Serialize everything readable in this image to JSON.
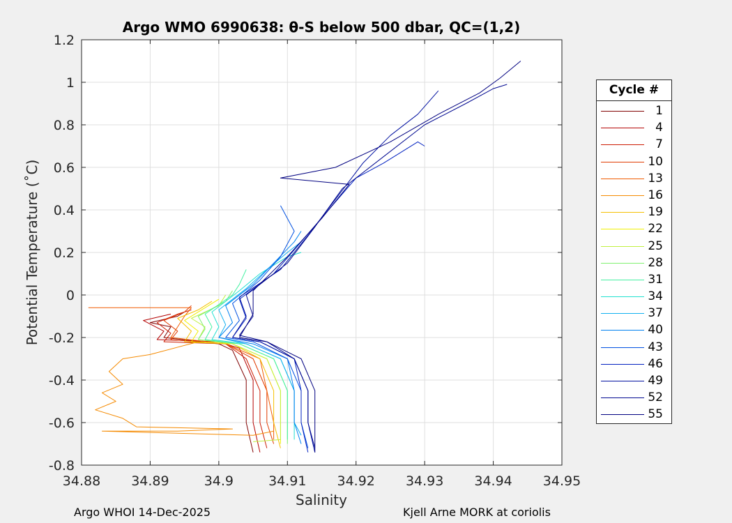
{
  "chart_data": {
    "type": "line",
    "title": "Argo WMO 6990638: θ-S below 500 dbar,  QC=(1,2)",
    "xlabel": "Salinity",
    "ylabel": "Potential Temperature (˚C)",
    "xlim": [
      34.88,
      34.95
    ],
    "ylim": [
      -0.8,
      1.2
    ],
    "xticks": [
      "34.88",
      "34.89",
      "34.9",
      "34.91",
      "34.92",
      "34.93",
      "34.94",
      "34.95"
    ],
    "yticks": [
      "-0.8",
      "-0.6",
      "-0.4",
      "-0.2",
      "0",
      "0.2",
      "0.4",
      "0.6",
      "0.8",
      "1",
      "1.2"
    ],
    "grid": true,
    "legend": {
      "title": "Cycle #",
      "placement": "outside-right",
      "entries": [
        {
          "label": "1",
          "color": "#800000"
        },
        {
          "label": "4",
          "color": "#b30000"
        },
        {
          "label": "7",
          "color": "#cc1a00"
        },
        {
          "label": "10",
          "color": "#e03a00"
        },
        {
          "label": "13",
          "color": "#f05a00"
        },
        {
          "label": "16",
          "color": "#f58a00"
        },
        {
          "label": "19",
          "color": "#f5c000"
        },
        {
          "label": "22",
          "color": "#f0f000"
        },
        {
          "label": "25",
          "color": "#c0f040"
        },
        {
          "label": "28",
          "color": "#80f070"
        },
        {
          "label": "31",
          "color": "#40f0a0"
        },
        {
          "label": "34",
          "color": "#20e0d0"
        },
        {
          "label": "37",
          "color": "#10b0f0"
        },
        {
          "label": "40",
          "color": "#0080f0"
        },
        {
          "label": "43",
          "color": "#0050e0"
        },
        {
          "label": "46",
          "color": "#0020c0"
        },
        {
          "label": "49",
          "color": "#0010a0"
        },
        {
          "label": "52",
          "color": "#000890"
        },
        {
          "label": "55",
          "color": "#000080"
        }
      ]
    },
    "series": [
      {
        "color": "#800000",
        "points": [
          [
            34.905,
            -0.74
          ],
          [
            34.904,
            -0.6
          ],
          [
            34.904,
            -0.4
          ],
          [
            34.902,
            -0.26
          ],
          [
            34.9,
            -0.23
          ],
          [
            34.892,
            -0.2
          ],
          [
            34.893,
            -0.15
          ],
          [
            34.89,
            -0.13
          ],
          [
            34.894,
            -0.1
          ],
          [
            34.895,
            -0.08
          ]
        ]
      },
      {
        "color": "#b30000",
        "points": [
          [
            34.906,
            -0.74
          ],
          [
            34.905,
            -0.6
          ],
          [
            34.905,
            -0.4
          ],
          [
            34.903,
            -0.25
          ],
          [
            34.9,
            -0.22
          ],
          [
            34.891,
            -0.21
          ],
          [
            34.892,
            -0.17
          ],
          [
            34.889,
            -0.12
          ],
          [
            34.893,
            -0.09
          ]
        ]
      },
      {
        "color": "#cc1a00",
        "points": [
          [
            34.907,
            -0.72
          ],
          [
            34.906,
            -0.6
          ],
          [
            34.906,
            -0.45
          ],
          [
            34.904,
            -0.3
          ],
          [
            34.901,
            -0.23
          ],
          [
            34.892,
            -0.22
          ],
          [
            34.893,
            -0.18
          ],
          [
            34.891,
            -0.13
          ],
          [
            34.894,
            -0.09
          ],
          [
            34.896,
            -0.07
          ]
        ]
      },
      {
        "color": "#e03a00",
        "points": [
          [
            34.908,
            -0.7
          ],
          [
            34.907,
            -0.6
          ],
          [
            34.907,
            -0.45
          ],
          [
            34.905,
            -0.3
          ],
          [
            34.901,
            -0.23
          ],
          [
            34.893,
            -0.21
          ],
          [
            34.894,
            -0.17
          ],
          [
            34.892,
            -0.12
          ],
          [
            34.895,
            -0.08
          ],
          [
            34.896,
            -0.05
          ]
        ]
      },
      {
        "color": "#f05a00",
        "points": [
          [
            34.881,
            -0.06
          ],
          [
            34.896,
            -0.06
          ],
          [
            34.895,
            -0.1
          ],
          [
            34.893,
            -0.2
          ],
          [
            34.901,
            -0.23
          ],
          [
            34.906,
            -0.3
          ],
          [
            34.907,
            -0.45
          ],
          [
            34.908,
            -0.6
          ],
          [
            34.908,
            -0.68
          ]
        ]
      },
      {
        "color": "#f58a00",
        "points": [
          [
            34.897,
            -0.22
          ],
          [
            34.89,
            -0.28
          ],
          [
            34.886,
            -0.3
          ],
          [
            34.884,
            -0.36
          ],
          [
            34.886,
            -0.42
          ],
          [
            34.883,
            -0.46
          ],
          [
            34.885,
            -0.5
          ],
          [
            34.882,
            -0.54
          ],
          [
            34.886,
            -0.58
          ],
          [
            34.888,
            -0.62
          ],
          [
            34.902,
            -0.63
          ],
          [
            34.894,
            -0.64
          ],
          [
            34.883,
            -0.64
          ],
          [
            34.905,
            -0.66
          ],
          [
            34.908,
            -0.64
          ]
        ]
      },
      {
        "color": "#f5c000",
        "points": [
          [
            34.909,
            -0.72
          ],
          [
            34.908,
            -0.6
          ],
          [
            34.908,
            -0.45
          ],
          [
            34.906,
            -0.3
          ],
          [
            34.902,
            -0.23
          ],
          [
            34.895,
            -0.22
          ],
          [
            34.896,
            -0.17
          ],
          [
            34.894,
            -0.11
          ],
          [
            34.897,
            -0.07
          ],
          [
            34.899,
            -0.03
          ]
        ]
      },
      {
        "color": "#f0f000",
        "points": [
          [
            34.909,
            -0.7
          ],
          [
            34.909,
            -0.6
          ],
          [
            34.909,
            -0.45
          ],
          [
            34.907,
            -0.3
          ],
          [
            34.902,
            -0.23
          ],
          [
            34.896,
            -0.22
          ],
          [
            34.897,
            -0.17
          ],
          [
            34.895,
            -0.12
          ],
          [
            34.898,
            -0.06
          ],
          [
            34.9,
            -0.02
          ]
        ]
      },
      {
        "color": "#c0f040",
        "points": [
          [
            34.905,
            -0.69
          ],
          [
            34.909,
            -0.68
          ],
          [
            34.909,
            -0.6
          ],
          [
            34.909,
            -0.45
          ],
          [
            34.907,
            -0.3
          ],
          [
            34.902,
            -0.23
          ],
          [
            34.897,
            -0.21
          ],
          [
            34.898,
            -0.15
          ],
          [
            34.896,
            -0.11
          ],
          [
            34.9,
            -0.05
          ],
          [
            34.901,
            0.0
          ]
        ]
      },
      {
        "color": "#80f070",
        "points": [
          [
            34.91,
            -0.7
          ],
          [
            34.91,
            -0.6
          ],
          [
            34.91,
            -0.45
          ],
          [
            34.908,
            -0.3
          ],
          [
            34.903,
            -0.23
          ],
          [
            34.897,
            -0.21
          ],
          [
            34.898,
            -0.16
          ],
          [
            34.897,
            -0.1
          ],
          [
            34.901,
            -0.03
          ],
          [
            34.902,
            0.02
          ]
        ]
      },
      {
        "color": "#40f0a0",
        "points": [
          [
            34.91,
            -0.68
          ],
          [
            34.91,
            -0.6
          ],
          [
            34.91,
            -0.45
          ],
          [
            34.908,
            -0.3
          ],
          [
            34.903,
            -0.23
          ],
          [
            34.898,
            -0.21
          ],
          [
            34.899,
            -0.15
          ],
          [
            34.898,
            -0.09
          ],
          [
            34.902,
            0.0
          ],
          [
            34.903,
            0.05
          ],
          [
            34.904,
            0.12
          ]
        ]
      },
      {
        "color": "#20e0d0",
        "points": [
          [
            34.911,
            -0.68
          ],
          [
            34.911,
            -0.6
          ],
          [
            34.911,
            -0.45
          ],
          [
            34.909,
            -0.3
          ],
          [
            34.904,
            -0.23
          ],
          [
            34.899,
            -0.21
          ],
          [
            34.9,
            -0.15
          ],
          [
            34.899,
            -0.08
          ],
          [
            34.903,
            0.02
          ],
          [
            34.906,
            0.1
          ],
          [
            34.91,
            0.18
          ],
          [
            34.912,
            0.2
          ]
        ]
      },
      {
        "color": "#10b0f0",
        "points": [
          [
            34.912,
            -0.66
          ],
          [
            34.911,
            -0.6
          ],
          [
            34.911,
            -0.45
          ],
          [
            34.909,
            -0.3
          ],
          [
            34.904,
            -0.23
          ],
          [
            34.9,
            -0.2
          ],
          [
            34.901,
            -0.14
          ],
          [
            34.9,
            -0.07
          ],
          [
            34.904,
            0.03
          ],
          [
            34.907,
            0.12
          ],
          [
            34.91,
            0.2
          ],
          [
            34.912,
            0.25
          ]
        ]
      },
      {
        "color": "#0080f0",
        "points": [
          [
            34.912,
            -0.7
          ],
          [
            34.911,
            -0.6
          ],
          [
            34.911,
            -0.45
          ],
          [
            34.91,
            -0.3
          ],
          [
            34.905,
            -0.23
          ],
          [
            34.9,
            -0.2
          ],
          [
            34.902,
            -0.13
          ],
          [
            34.901,
            -0.05
          ],
          [
            34.905,
            0.05
          ],
          [
            34.908,
            0.15
          ],
          [
            34.911,
            0.25
          ],
          [
            34.912,
            0.3
          ]
        ]
      },
      {
        "color": "#0050e0",
        "points": [
          [
            34.913,
            -0.72
          ],
          [
            34.912,
            -0.6
          ],
          [
            34.912,
            -0.45
          ],
          [
            34.91,
            -0.3
          ],
          [
            34.905,
            -0.22
          ],
          [
            34.901,
            -0.2
          ],
          [
            34.903,
            -0.12
          ],
          [
            34.902,
            -0.04
          ],
          [
            34.906,
            0.07
          ],
          [
            34.909,
            0.18
          ],
          [
            34.911,
            0.3
          ],
          [
            34.909,
            0.42
          ]
        ]
      },
      {
        "color": "#0020c0",
        "points": [
          [
            34.913,
            -0.74
          ],
          [
            34.912,
            -0.6
          ],
          [
            34.912,
            -0.45
          ],
          [
            34.911,
            -0.3
          ],
          [
            34.906,
            -0.22
          ],
          [
            34.902,
            -0.2
          ],
          [
            34.904,
            -0.11
          ],
          [
            34.903,
            -0.02
          ],
          [
            34.908,
            0.1
          ],
          [
            34.912,
            0.25
          ],
          [
            34.916,
            0.4
          ],
          [
            34.92,
            0.55
          ],
          [
            34.924,
            0.62
          ],
          [
            34.929,
            0.72
          ],
          [
            34.93,
            0.7
          ]
        ]
      },
      {
        "color": "#0010a0",
        "points": [
          [
            34.914,
            -0.74
          ],
          [
            34.913,
            -0.6
          ],
          [
            34.913,
            -0.45
          ],
          [
            34.911,
            -0.3
          ],
          [
            34.906,
            -0.22
          ],
          [
            34.902,
            -0.2
          ],
          [
            34.904,
            -0.1
          ],
          [
            34.903,
            -0.01
          ],
          [
            34.909,
            0.12
          ],
          [
            34.913,
            0.28
          ],
          [
            34.917,
            0.45
          ],
          [
            34.921,
            0.62
          ],
          [
            34.925,
            0.75
          ],
          [
            34.929,
            0.85
          ],
          [
            34.932,
            0.96
          ]
        ]
      },
      {
        "color": "#000890",
        "points": [
          [
            34.914,
            -0.72
          ],
          [
            34.913,
            -0.6
          ],
          [
            34.913,
            -0.45
          ],
          [
            34.911,
            -0.3
          ],
          [
            34.907,
            -0.22
          ],
          [
            34.903,
            -0.19
          ],
          [
            34.905,
            -0.1
          ],
          [
            34.904,
            0.0
          ],
          [
            34.91,
            0.15
          ],
          [
            34.914,
            0.32
          ],
          [
            34.918,
            0.5
          ],
          [
            34.924,
            0.65
          ],
          [
            34.93,
            0.8
          ],
          [
            34.936,
            0.9
          ],
          [
            34.94,
            0.97
          ],
          [
            34.942,
            0.99
          ]
        ]
      },
      {
        "color": "#000080",
        "points": [
          [
            34.914,
            -0.74
          ],
          [
            34.914,
            -0.6
          ],
          [
            34.914,
            -0.45
          ],
          [
            34.912,
            -0.3
          ],
          [
            34.907,
            -0.22
          ],
          [
            34.903,
            -0.2
          ],
          [
            34.905,
            -0.09
          ],
          [
            34.905,
            0.02
          ],
          [
            34.91,
            0.18
          ],
          [
            34.915,
            0.36
          ],
          [
            34.919,
            0.52
          ],
          [
            34.909,
            0.55
          ],
          [
            34.917,
            0.6
          ],
          [
            34.925,
            0.72
          ],
          [
            34.932,
            0.85
          ],
          [
            34.938,
            0.95
          ],
          [
            34.941,
            1.02
          ],
          [
            34.944,
            1.1
          ]
        ]
      }
    ]
  },
  "footer": {
    "left": "Argo WHOI 14-Dec-2025",
    "right": "Kjell Arne MORK at coriolis"
  }
}
